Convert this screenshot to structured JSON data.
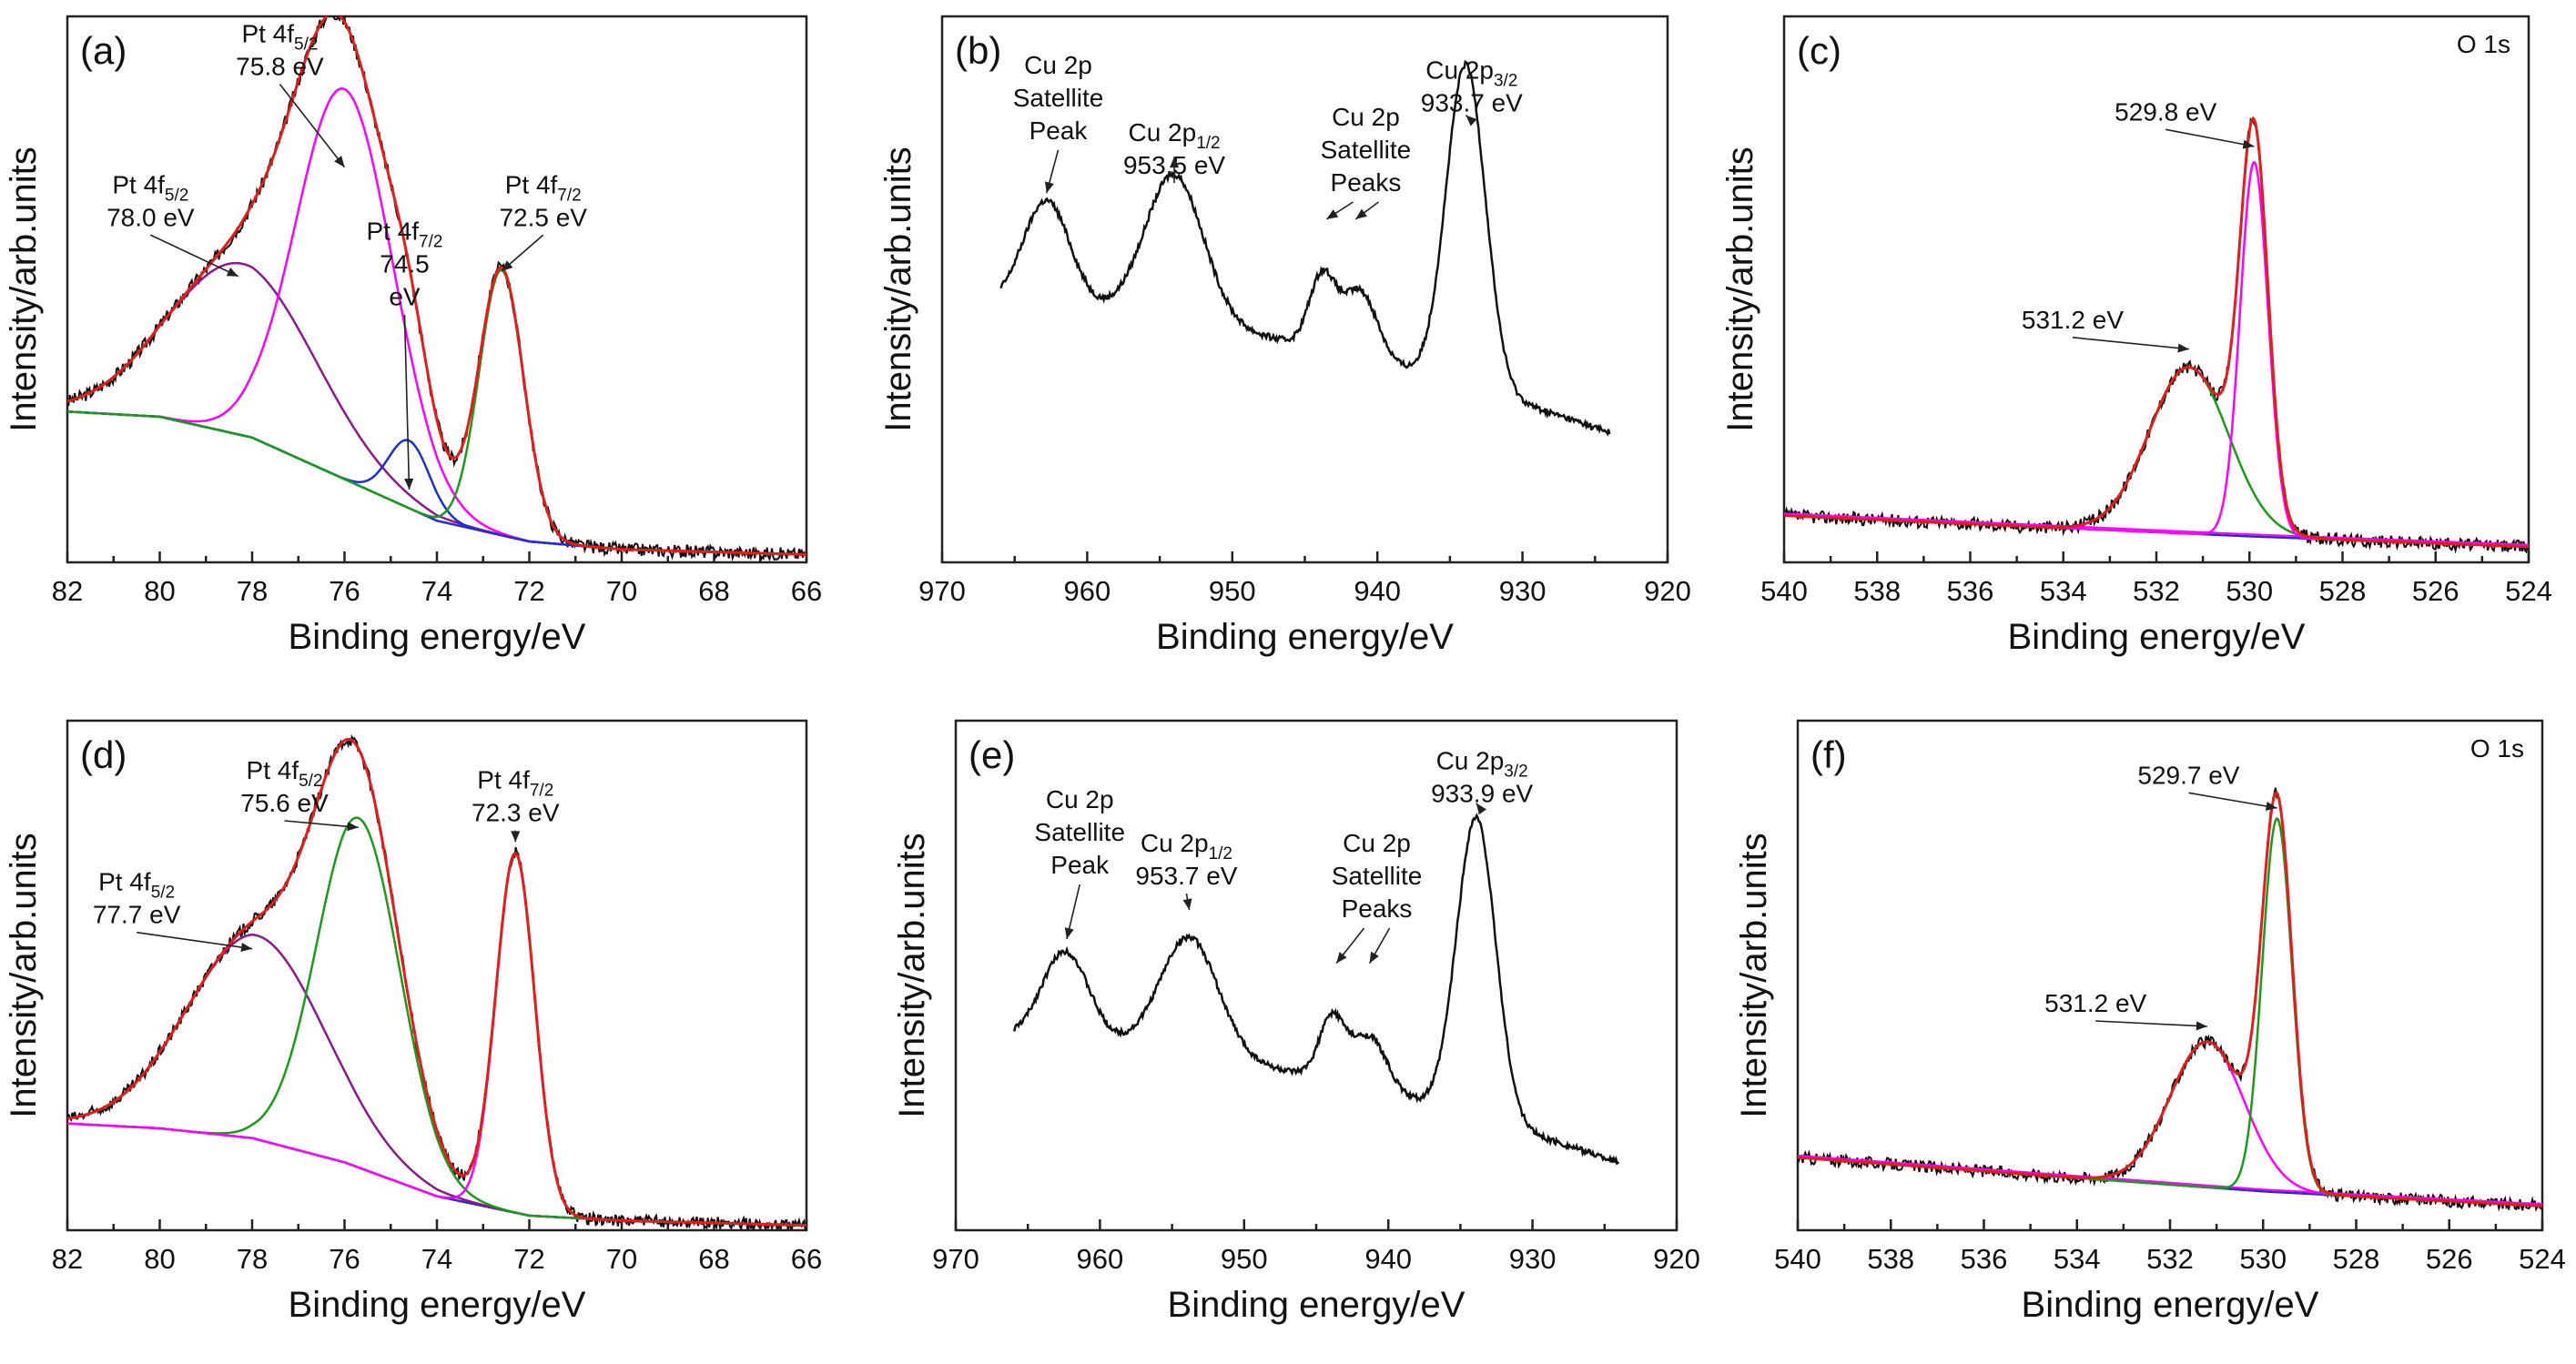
{
  "figure": {
    "xlabel": "Binding energy/eV",
    "ylabel": "Intensity/arb.units"
  },
  "chart_data": [
    {
      "id": "a",
      "label": "(a)",
      "type": "line",
      "xlabel": "Binding energy/eV",
      "ylabel": "Intensity/arb.units",
      "xlim": [
        82,
        66
      ],
      "xticks": [
        82,
        80,
        78,
        76,
        74,
        72,
        70,
        68,
        66
      ],
      "ylim": [
        0,
        1.05
      ],
      "background": [
        [
          82,
          0.29
        ],
        [
          80,
          0.28
        ],
        [
          78,
          0.24
        ],
        [
          76,
          0.16
        ],
        [
          74,
          0.08
        ],
        [
          72,
          0.04
        ],
        [
          70,
          0.025
        ],
        [
          68,
          0.02
        ],
        [
          66,
          0.015
        ]
      ],
      "peaks": [
        {
          "name": "Pt 4f5/2 (78.0 eV)",
          "center": 78.2,
          "amp": 0.33,
          "width": 1.6,
          "color": "#8b1a8b"
        },
        {
          "name": "Pt 4f5/2 (75.8 eV)",
          "center": 76.0,
          "amp": 0.75,
          "width": 1.05,
          "color": "#ff00ff"
        },
        {
          "name": "Pt 4f7/2 (74.5 eV)",
          "center": 74.6,
          "amp": 0.13,
          "width": 0.45,
          "color": "#1f2fd6"
        },
        {
          "name": "Pt 4f7/2 (72.5 eV)",
          "center": 72.6,
          "amp": 0.51,
          "width": 0.48,
          "color": "#1a9b1a"
        }
      ],
      "envelope_color": "#e61c1c",
      "raw_color": "#111111",
      "background_color": "#2a2ad0",
      "annotations": [
        {
          "name": "Pt 4f",
          "sub": "5/2",
          "value": "75.8 eV",
          "x": 77.4,
          "y": 1.0
        },
        {
          "name": "Pt 4f",
          "sub": "5/2",
          "value": "78.0 eV",
          "x": 80.2,
          "y": 0.71
        },
        {
          "name": "Pt 4f",
          "sub": "7/2",
          "value": "74.5",
          "value2": "eV",
          "x": 74.7,
          "y": 0.62
        },
        {
          "name": "Pt 4f",
          "sub": "7/2",
          "value": "72.5 eV",
          "x": 71.7,
          "y": 0.71
        }
      ]
    },
    {
      "id": "b",
      "label": "(b)",
      "type": "line",
      "xlabel": "Binding energy/eV",
      "ylabel": "Intensity/arb.units",
      "xlim": [
        970,
        920
      ],
      "xticks": [
        970,
        960,
        950,
        940,
        930,
        920
      ],
      "ylim": [
        0,
        1.05
      ],
      "baseline_start": 0.5,
      "baseline_end": 0.25,
      "data_range": [
        966,
        924
      ],
      "peaks": [
        {
          "center": 962.8,
          "amp": 0.2,
          "width": 1.6
        },
        {
          "center": 954.0,
          "amp": 0.28,
          "width": 2.0
        },
        {
          "center": 943.8,
          "amp": 0.14,
          "width": 0.9
        },
        {
          "center": 941.2,
          "amp": 0.13,
          "width": 1.2
        },
        {
          "center": 933.9,
          "amp": 0.62,
          "width": 1.35
        }
      ],
      "annotations": [
        {
          "lines": [
            "Cu 2p",
            "Satellite",
            "Peak"
          ],
          "x": 962.0,
          "y": 0.94
        },
        {
          "name": "Cu 2p",
          "sub": "1/2",
          "value": "953.5 eV",
          "x": 954.0,
          "y": 0.81
        },
        {
          "lines": [
            "Cu 2p",
            "Satellite",
            "Peaks"
          ],
          "x": 940.8,
          "y": 0.84
        },
        {
          "name": "Cu 2p",
          "sub": "3/2",
          "value": "933.7 eV",
          "x": 933.5,
          "y": 0.93
        }
      ]
    },
    {
      "id": "c",
      "label": "(c)",
      "corner_label": "O 1s",
      "type": "line",
      "xlabel": "Binding energy/eV",
      "ylabel": "Intensity/arb.units",
      "xlim": [
        540,
        524
      ],
      "xticks": [
        540,
        538,
        536,
        534,
        532,
        530,
        528,
        526,
        524
      ],
      "ylim": [
        0,
        1.05
      ],
      "background": [
        [
          540,
          0.09
        ],
        [
          530,
          0.05
        ],
        [
          524,
          0.03
        ]
      ],
      "peaks": [
        {
          "name": "531.2 eV",
          "center": 531.3,
          "amp": 0.32,
          "width": 0.85,
          "color": "#1a9b1a"
        },
        {
          "name": "529.8 eV",
          "center": 529.9,
          "amp": 0.72,
          "width": 0.3,
          "color": "#ff00ff"
        }
      ],
      "envelope_color": "#e61c1c",
      "raw_color": "#111111",
      "background_color": "#2a2ad0",
      "background_color2": "#ff00ff",
      "annotations": [
        {
          "value": "529.8 eV",
          "x": 531.8,
          "y": 0.85
        },
        {
          "value": "531.2 eV",
          "x": 533.8,
          "y": 0.45
        }
      ]
    },
    {
      "id": "d",
      "label": "(d)",
      "type": "line",
      "xlabel": "Binding energy/eV",
      "ylabel": "Intensity/arb.units",
      "xlim": [
        82,
        66
      ],
      "xticks": [
        82,
        80,
        78,
        76,
        74,
        72,
        70,
        68,
        66
      ],
      "ylim": [
        0,
        1.05
      ],
      "background": [
        [
          82,
          0.22
        ],
        [
          80,
          0.21
        ],
        [
          78,
          0.19
        ],
        [
          76,
          0.14
        ],
        [
          74,
          0.07
        ],
        [
          72,
          0.03
        ],
        [
          70,
          0.02
        ],
        [
          68,
          0.015
        ],
        [
          66,
          0.01
        ]
      ],
      "peaks": [
        {
          "name": "Pt 4f5/2 (77.7 eV)",
          "center": 77.9,
          "amp": 0.42,
          "width": 1.5,
          "color": "#8b1a8b"
        },
        {
          "name": "Pt 4f5/2 (75.6 eV)",
          "center": 75.7,
          "amp": 0.72,
          "width": 0.9,
          "color": "#1a9b1a"
        },
        {
          "name": "Pt 4f7/2 (72.3 eV)",
          "center": 72.3,
          "amp": 0.74,
          "width": 0.42,
          "color": "#ff00ff"
        }
      ],
      "envelope_color": "#e61c1c",
      "raw_color": "#111111",
      "background_color": "#2a2ad0",
      "annotations": [
        {
          "name": "Pt 4f",
          "sub": "5/2",
          "value": "75.6 eV",
          "x": 77.3,
          "y": 0.93
        },
        {
          "name": "Pt 4f",
          "sub": "5/2",
          "value": "77.7 eV",
          "x": 80.5,
          "y": 0.7
        },
        {
          "name": "Pt 4f",
          "sub": "7/2",
          "value": "72.3 eV",
          "x": 72.3,
          "y": 0.91
        }
      ]
    },
    {
      "id": "e",
      "label": "(e)",
      "type": "line",
      "xlabel": "Binding energy/eV",
      "ylabel": "Intensity/arb.units",
      "xlim": [
        970,
        920
      ],
      "xticks": [
        970,
        960,
        950,
        940,
        930,
        920
      ],
      "ylim": [
        0,
        1.05
      ],
      "baseline_start": 0.4,
      "baseline_end": 0.14,
      "data_range": [
        966,
        924
      ],
      "peaks": [
        {
          "center": 962.4,
          "amp": 0.18,
          "width": 1.6
        },
        {
          "center": 953.8,
          "amp": 0.24,
          "width": 2.0
        },
        {
          "center": 943.9,
          "amp": 0.13,
          "width": 0.9
        },
        {
          "center": 941.3,
          "amp": 0.11,
          "width": 1.2
        },
        {
          "center": 933.9,
          "amp": 0.62,
          "width": 1.35
        }
      ],
      "annotations": [
        {
          "lines": [
            "Cu 2p",
            "Satellite",
            "Peak"
          ],
          "x": 961.4,
          "y": 0.87
        },
        {
          "name": "Cu 2p",
          "sub": "1/2",
          "value": "953.7 eV",
          "x": 954.0,
          "y": 0.78
        },
        {
          "lines": [
            "Cu 2p",
            "Satellite",
            "Peaks"
          ],
          "x": 940.8,
          "y": 0.78
        },
        {
          "name": "Cu 2p",
          "sub": "3/2",
          "value": "933.9 eV",
          "x": 933.5,
          "y": 0.95
        }
      ]
    },
    {
      "id": "f",
      "label": "(f)",
      "corner_label": "O 1s",
      "type": "line",
      "xlabel": "Binding energy/eV",
      "ylabel": "Intensity/arb.units",
      "xlim": [
        540,
        524
      ],
      "xticks": [
        540,
        538,
        536,
        534,
        532,
        530,
        528,
        526,
        524
      ],
      "ylim": [
        0,
        1.05
      ],
      "background": [
        [
          540,
          0.15
        ],
        [
          530,
          0.08
        ],
        [
          524,
          0.05
        ]
      ],
      "peaks": [
        {
          "name": "531.2 eV",
          "center": 531.2,
          "amp": 0.3,
          "width": 0.8,
          "color": "#ff00ff"
        },
        {
          "name": "529.7 eV",
          "center": 529.7,
          "amp": 0.77,
          "width": 0.32,
          "color": "#1a9b1a"
        }
      ],
      "envelope_color": "#e61c1c",
      "raw_color": "#111111",
      "background_color": "#2a2ad0",
      "background_color2": "#ff00ff",
      "annotations": [
        {
          "value": "529.7 eV",
          "x": 531.6,
          "y": 0.92
        },
        {
          "value": "531.2 eV",
          "x": 533.6,
          "y": 0.45
        }
      ]
    }
  ]
}
